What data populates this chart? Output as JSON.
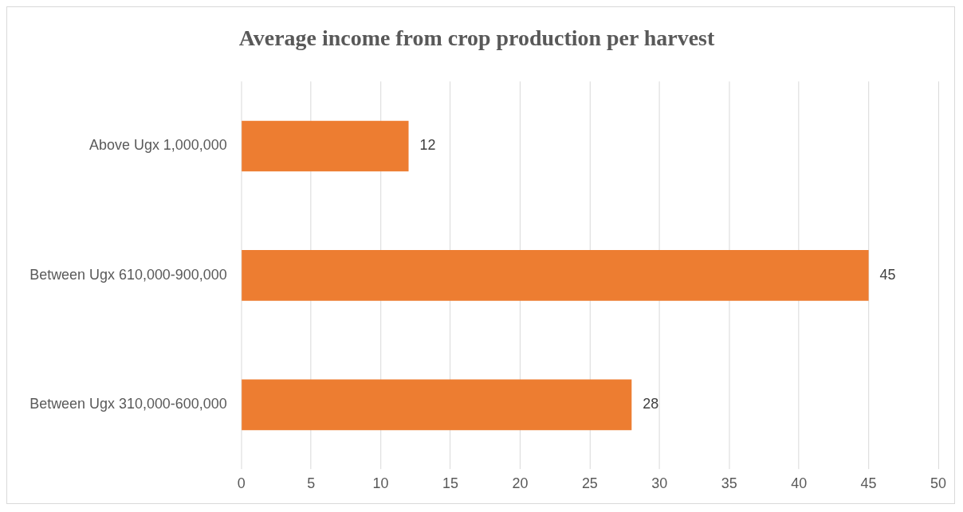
{
  "chart_data": {
    "type": "bar",
    "orientation": "horizontal",
    "title": "Average income from crop production per harvest",
    "categories": [
      "Above Ugx 1,000,000",
      "Between Ugx 610,000-900,000",
      "Between Ugx 310,000-600,000"
    ],
    "values": [
      12,
      45,
      28
    ],
    "color": "#ed7d31",
    "xlim": [
      0,
      50
    ],
    "xticks": [
      0,
      5,
      10,
      15,
      20,
      25,
      30,
      35,
      40,
      45,
      50
    ],
    "grid": "x",
    "data_labels": true
  }
}
